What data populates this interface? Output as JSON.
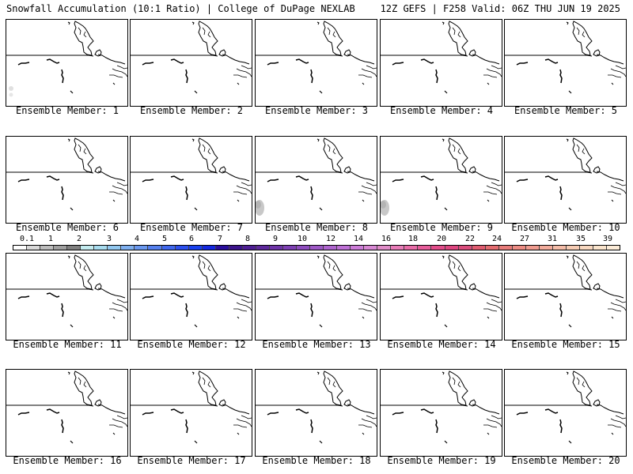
{
  "header": {
    "left": "Snowfall Accumulation (10:1 Ratio) | College of DuPage NEXLAB",
    "right": "12Z GEFS | F258 Valid: 06Z THU JUN 19 2025"
  },
  "panels": [
    {
      "label": "Ensemble Member: 1",
      "shading": "light-grey-west-edge"
    },
    {
      "label": "Ensemble Member: 2",
      "shading": "none"
    },
    {
      "label": "Ensemble Member: 3",
      "shading": "none"
    },
    {
      "label": "Ensemble Member: 4",
      "shading": "none"
    },
    {
      "label": "Ensemble Member: 5",
      "shading": "none"
    },
    {
      "label": "Ensemble Member: 6",
      "shading": "none"
    },
    {
      "label": "Ensemble Member: 7",
      "shading": "none"
    },
    {
      "label": "Ensemble Member: 8",
      "shading": "grey-southwest-corner"
    },
    {
      "label": "Ensemble Member: 9",
      "shading": "grey-southwest-corner"
    },
    {
      "label": "Ensemble Member: 10",
      "shading": "none"
    },
    {
      "label": "Ensemble Member: 11",
      "shading": "none"
    },
    {
      "label": "Ensemble Member: 12",
      "shading": "none"
    },
    {
      "label": "Ensemble Member: 13",
      "shading": "none"
    },
    {
      "label": "Ensemble Member: 14",
      "shading": "none"
    },
    {
      "label": "Ensemble Member: 15",
      "shading": "none"
    },
    {
      "label": "Ensemble Member: 16",
      "shading": "none"
    },
    {
      "label": "Ensemble Member: 17",
      "shading": "none"
    },
    {
      "label": "Ensemble Member: 18",
      "shading": "none"
    },
    {
      "label": "Ensemble Member: 19",
      "shading": "none"
    },
    {
      "label": "Ensemble Member: 20",
      "shading": "none"
    }
  ],
  "colorbar": {
    "ticks": [
      "0.1",
      "1",
      "2",
      "3",
      "4",
      "5",
      "6",
      "7",
      "8",
      "9",
      "10",
      "12",
      "14",
      "16",
      "18",
      "20",
      "22",
      "24",
      "27",
      "31",
      "35",
      "39"
    ],
    "colors": [
      "#ffffff",
      "#d9d9d9",
      "#bdbdbd",
      "#a0a0a0",
      "#808080",
      "#c4ecf0",
      "#a8dcef",
      "#92c8f0",
      "#7fb0f0",
      "#6a98ef",
      "#5580ee",
      "#4068ee",
      "#2c50ee",
      "#1840ee",
      "#1428e0",
      "#2a0e9c",
      "#3c148c",
      "#4e1e94",
      "#5e289c",
      "#6e34a8",
      "#7e40b4",
      "#8e4cbe",
      "#9e58c6",
      "#ae64ce",
      "#be70d6",
      "#cc7cd8",
      "#d888d4",
      "#e08cc8",
      "#e87cb8",
      "#e86ca8",
      "#e65c9a",
      "#e24c8a",
      "#de4680",
      "#da4c7c",
      "#e05c70",
      "#e46c70",
      "#e87c7a",
      "#ec8c84",
      "#f09c90",
      "#f2ac9c",
      "#f4bca8",
      "#f6ccb4",
      "#f8d8c0",
      "#fae4cc",
      "#fcecd8"
    ]
  }
}
